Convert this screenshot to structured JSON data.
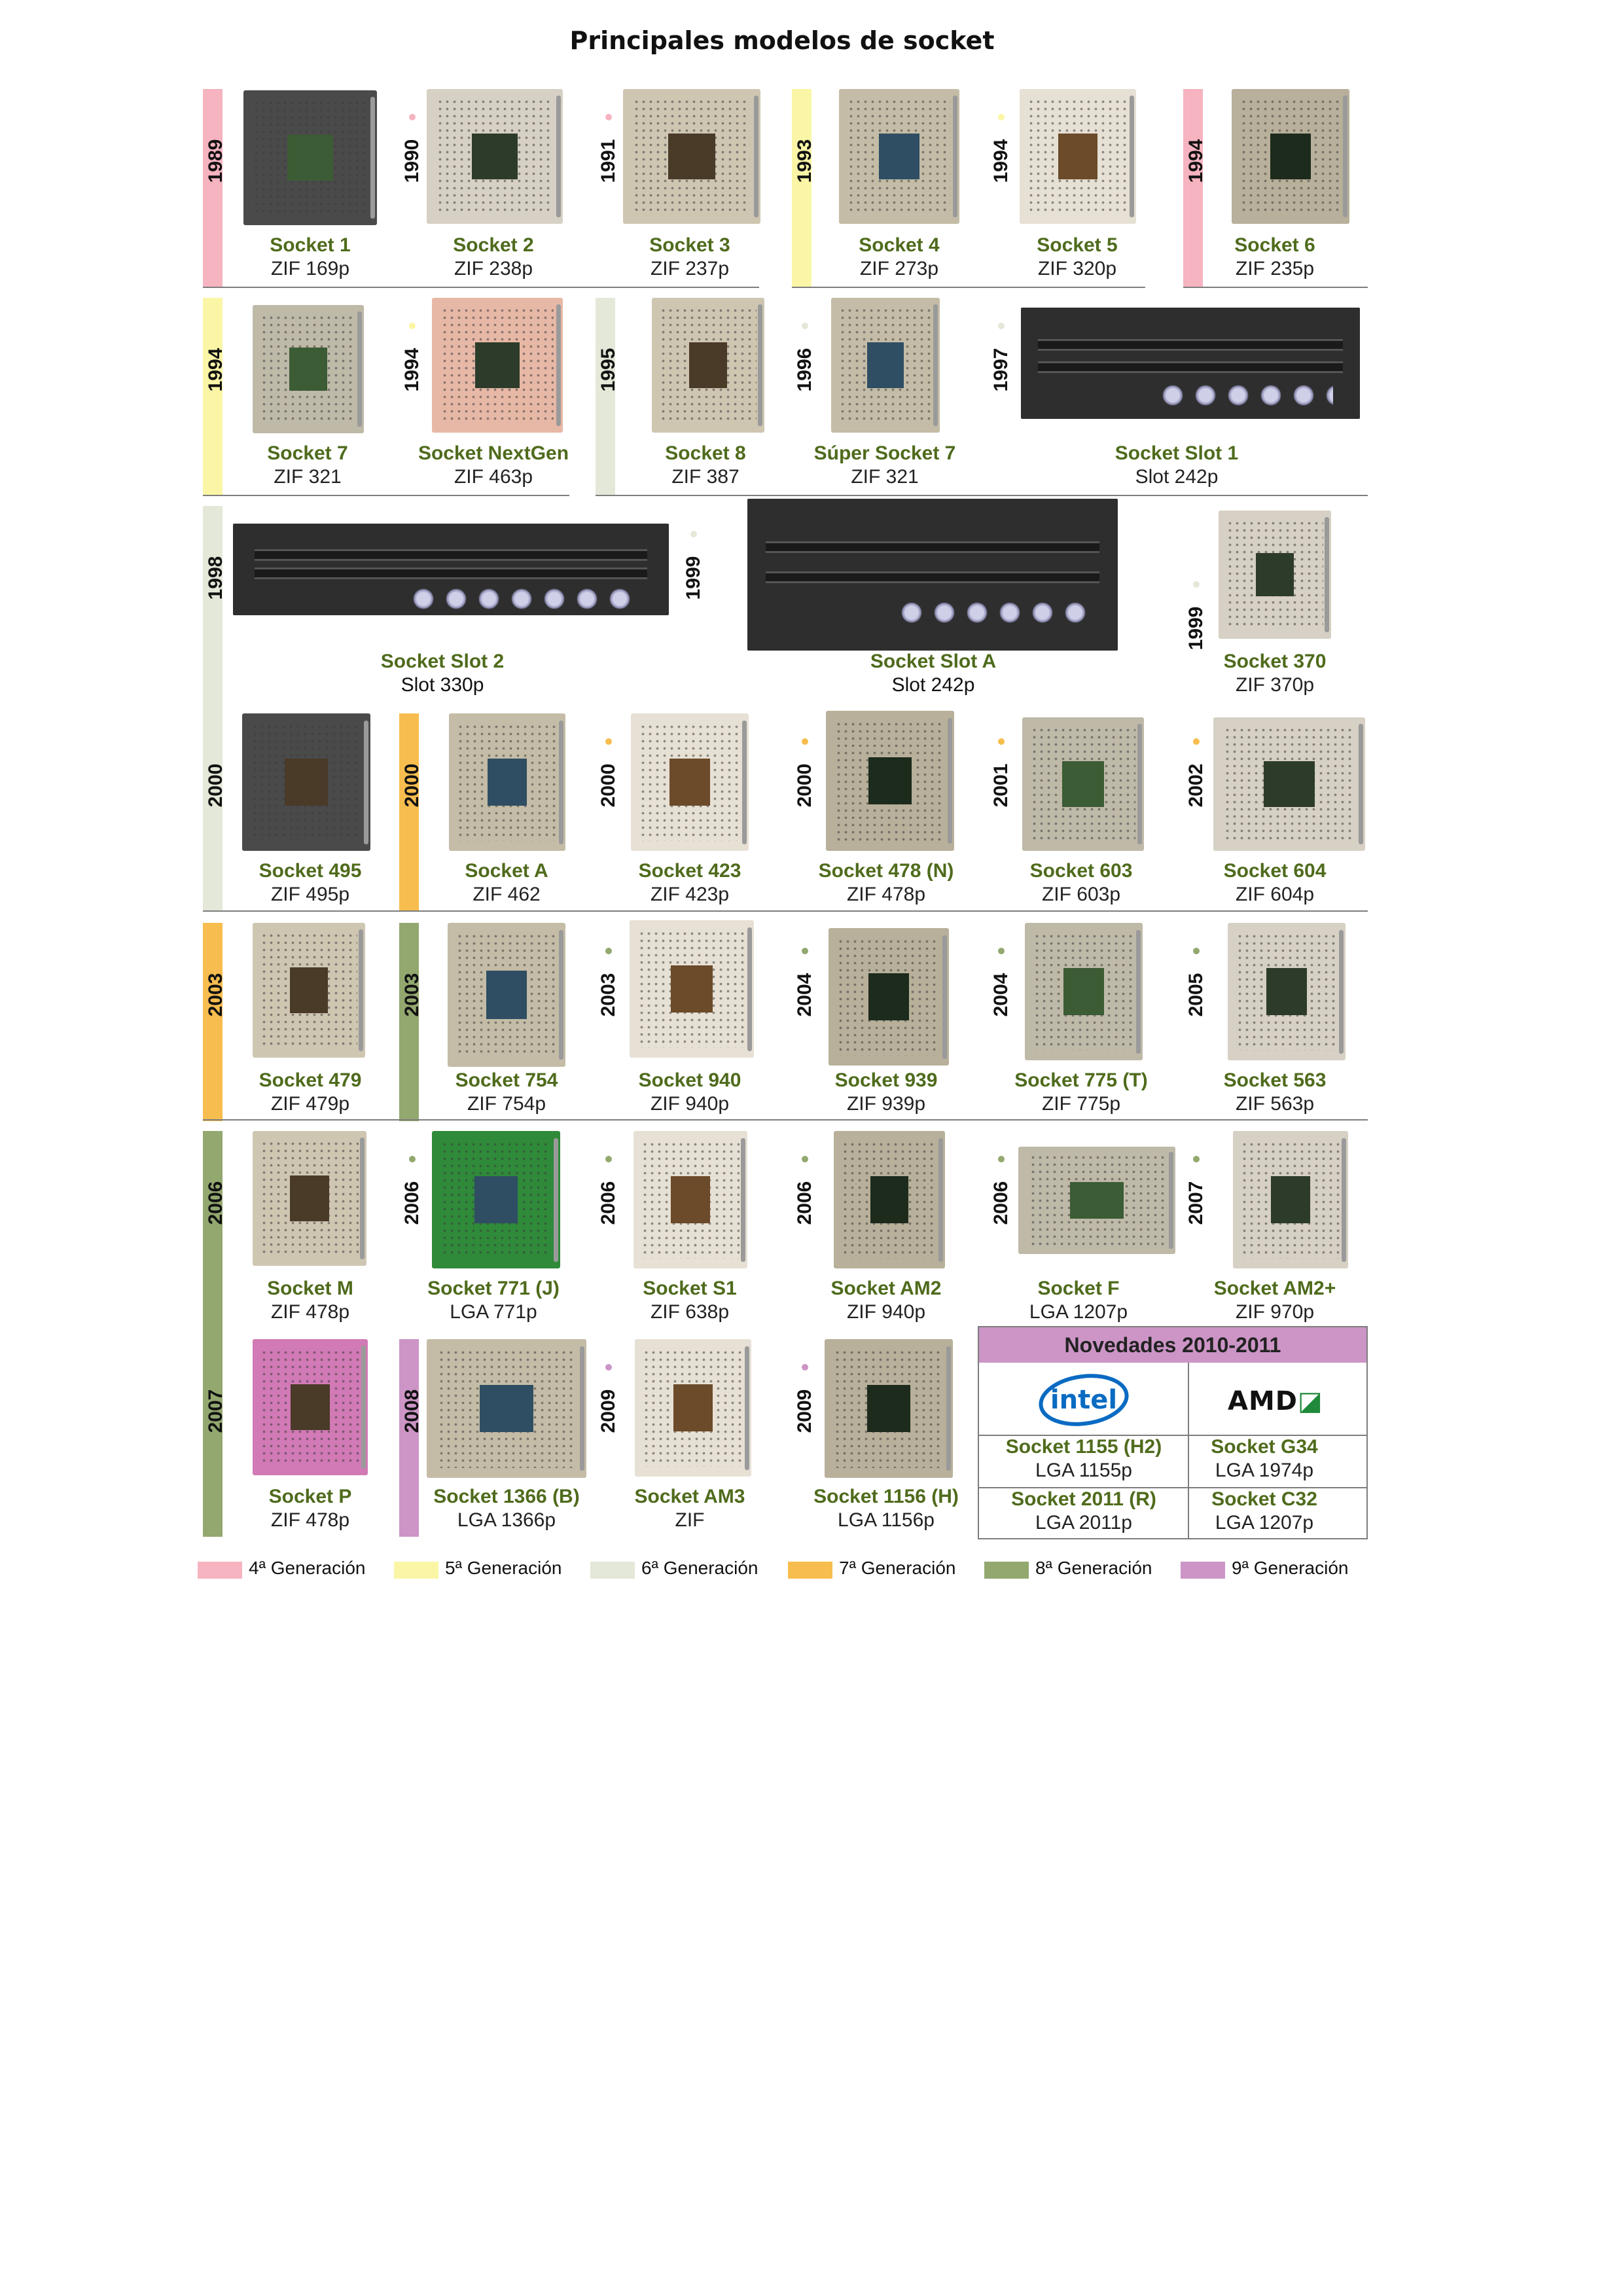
{
  "title": "Principales modelos de socket",
  "generation_colors": {
    "g4": "#f6b3c0",
    "g5": "#fbf6a6",
    "g6": "#e3e8d8",
    "g7": "#f7bd4e",
    "g8": "#93a86f",
    "g9": "#cc95c6"
  },
  "sockets": [
    {
      "year": "1989",
      "name": "Socket 1",
      "spec": "ZIF 169p",
      "generation": "g4",
      "icon": "socket-photo"
    },
    {
      "year": "1990",
      "name": "Socket 2",
      "spec": "ZIF 238p",
      "generation": "g4",
      "icon": "socket-photo"
    },
    {
      "year": "1991",
      "name": "Socket 3",
      "spec": "ZIF 237p",
      "generation": "g4",
      "icon": "socket-photo"
    },
    {
      "year": "1993",
      "name": "Socket 4",
      "spec": "ZIF 273p",
      "generation": "g5",
      "icon": "socket-photo"
    },
    {
      "year": "1994",
      "name": "Socket 5",
      "spec": "ZIF 320p",
      "generation": "g5",
      "icon": "socket-photo"
    },
    {
      "year": "1994",
      "name": "Socket 6",
      "spec": "ZIF 235p",
      "generation": "g4",
      "icon": "socket-photo"
    },
    {
      "year": "1994",
      "name": "Socket 7",
      "spec": "ZIF 321",
      "generation": "g5",
      "icon": "socket-photo"
    },
    {
      "year": "1994",
      "name": "Socket NextGen",
      "spec": "ZIF 463p",
      "generation": "g5",
      "icon": "socket-photo"
    },
    {
      "year": "1995",
      "name": "Socket 8",
      "spec": "ZIF 387",
      "generation": "g6",
      "icon": "socket-photo"
    },
    {
      "year": "1996",
      "name": "Súper Socket 7",
      "spec": "ZIF 321",
      "generation": "g6",
      "icon": "socket-photo"
    },
    {
      "year": "1997",
      "name": "Socket Slot 1",
      "spec": "Slot 242p",
      "generation": "g6",
      "icon": "slot-photo"
    },
    {
      "year": "1998",
      "name": "Socket Slot 2",
      "spec": "Slot 330p",
      "generation": "g6",
      "icon": "slot-photo"
    },
    {
      "year": "1999",
      "name": "Socket Slot A",
      "spec": "Slot 242p",
      "generation": "g6",
      "icon": "slot-photo"
    },
    {
      "year": "1999",
      "name": "Socket 370",
      "spec": "ZIF 370p",
      "generation": "g6",
      "icon": "socket-photo"
    },
    {
      "year": "2000",
      "name": "Socket 495",
      "spec": "ZIF 495p",
      "generation": "g6",
      "icon": "socket-photo"
    },
    {
      "year": "2000",
      "name": "Socket A",
      "spec": "ZIF 462",
      "generation": "g7",
      "icon": "socket-photo"
    },
    {
      "year": "2000",
      "name": "Socket 423",
      "spec": "ZIF 423p",
      "generation": "g7",
      "icon": "socket-photo"
    },
    {
      "year": "2000",
      "name": "Socket 478 (N)",
      "spec": "ZIF 478p",
      "generation": "g7",
      "icon": "socket-photo"
    },
    {
      "year": "2001",
      "name": "Socket 603",
      "spec": "ZIF 603p",
      "generation": "g7",
      "icon": "socket-photo"
    },
    {
      "year": "2002",
      "name": "Socket 604",
      "spec": "ZIF 604p",
      "generation": "g7",
      "icon": "socket-photo"
    },
    {
      "year": "2003",
      "name": "Socket 479",
      "spec": "ZIF 479p",
      "generation": "g7",
      "icon": "socket-photo"
    },
    {
      "year": "2003",
      "name": "Socket 754",
      "spec": "ZIF 754p",
      "generation": "g8",
      "icon": "socket-photo"
    },
    {
      "year": "2003",
      "name": "Socket 940",
      "spec": "ZIF 940p",
      "generation": "g8",
      "icon": "socket-photo"
    },
    {
      "year": "2004",
      "name": "Socket 939",
      "spec": "ZIF 939p",
      "generation": "g8",
      "icon": "socket-photo"
    },
    {
      "year": "2004",
      "name": "Socket 775 (T)",
      "spec": "ZIF 775p",
      "generation": "g8",
      "icon": "socket-photo"
    },
    {
      "year": "2005",
      "name": "Socket 563",
      "spec": "ZIF 563p",
      "generation": "g8",
      "icon": "socket-photo"
    },
    {
      "year": "2006",
      "name": "Socket M",
      "spec": "ZIF 478p",
      "generation": "g8",
      "icon": "socket-photo"
    },
    {
      "year": "2006",
      "name": "Socket 771 (J)",
      "spec": "LGA 771p",
      "generation": "g8",
      "icon": "socket-photo"
    },
    {
      "year": "2006",
      "name": "Socket S1",
      "spec": "ZIF 638p",
      "generation": "g8",
      "icon": "socket-photo"
    },
    {
      "year": "2006",
      "name": "Socket AM2",
      "spec": "ZIF 940p",
      "generation": "g8",
      "icon": "socket-photo"
    },
    {
      "year": "2006",
      "name": "Socket F",
      "spec": "LGA 1207p",
      "generation": "g8",
      "icon": "socket-photo"
    },
    {
      "year": "2007",
      "name": "Socket AM2+",
      "spec": "ZIF 970p",
      "generation": "g8",
      "icon": "socket-photo"
    },
    {
      "year": "2007",
      "name": "Socket P",
      "spec": "ZIF 478p",
      "generation": "g8",
      "icon": "socket-photo"
    },
    {
      "year": "2008",
      "name": "Socket 1366 (B)",
      "spec": "LGA 1366p",
      "generation": "g9",
      "icon": "socket-photo"
    },
    {
      "year": "2009",
      "name": "Socket AM3",
      "spec": "ZIF",
      "generation": "g9",
      "icon": "socket-photo"
    },
    {
      "year": "2009",
      "name": "Socket 1156 (H)",
      "spec": "LGA 1156p",
      "generation": "g9",
      "icon": "socket-photo"
    }
  ],
  "novedades": {
    "title": "Novedades 2010-2011",
    "intel_logo_text": "intel",
    "amd_logo_text": "AMD",
    "intel": [
      {
        "name": "Socket 1155 (H2)",
        "spec": "LGA 1155p"
      },
      {
        "name": "Socket 2011 (R)",
        "spec": "LGA 2011p"
      }
    ],
    "amd": [
      {
        "name": "Socket G34",
        "spec": "LGA 1974p"
      },
      {
        "name": "Socket C32",
        "spec": "LGA 1207p"
      }
    ]
  },
  "legend": [
    {
      "label": "4ª Generación",
      "generation": "g4"
    },
    {
      "label": "5ª Generación",
      "generation": "g5"
    },
    {
      "label": "6ª Generación",
      "generation": "g6"
    },
    {
      "label": "7ª Generación",
      "generation": "g7"
    },
    {
      "label": "8ª Generación",
      "generation": "g8"
    },
    {
      "label": "9ª Generación",
      "generation": "g9"
    }
  ]
}
